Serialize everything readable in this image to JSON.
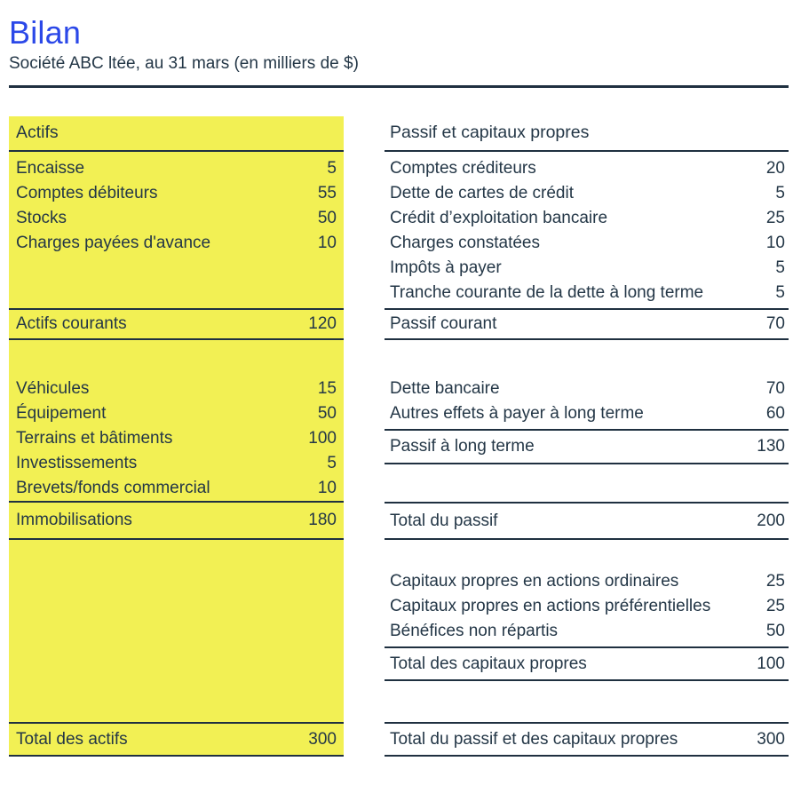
{
  "header": {
    "title": "Bilan",
    "subtitle": "Société ABC ltée, au 31 mars (en milliers de $)"
  },
  "colors": {
    "accent": "#2b48e8",
    "yellow": "#f2f054",
    "ink": "#243747",
    "line": "#1f3040"
  },
  "assets": {
    "header": "Actifs",
    "current": {
      "rows": [
        {
          "label": "Encaisse",
          "value": "5"
        },
        {
          "label": "Comptes débiteurs",
          "value": "55"
        },
        {
          "label": "Stocks",
          "value": "50"
        },
        {
          "label": "Charges payées d'avance",
          "value": "10"
        }
      ],
      "subtotal": {
        "label": "Actifs courants",
        "value": "120"
      }
    },
    "fixed": {
      "rows": [
        {
          "label": "Véhicules",
          "value": "15"
        },
        {
          "label": "Équipement",
          "value": "50"
        },
        {
          "label": "Terrains et bâtiments",
          "value": "100"
        },
        {
          "label": "Investissements",
          "value": "5"
        },
        {
          "label": "Brevets/fonds commercial",
          "value": "10"
        }
      ],
      "subtotal": {
        "label": "Immobilisations",
        "value": "180"
      }
    },
    "total": {
      "label": "Total des actifs",
      "value": "300"
    }
  },
  "liabilities": {
    "header": "Passif et capitaux propres",
    "current": {
      "rows": [
        {
          "label": "Comptes créditeurs",
          "value": "20"
        },
        {
          "label": "Dette de cartes de crédit",
          "value": "5"
        },
        {
          "label": "Crédit d’exploitation bancaire",
          "value": "25"
        },
        {
          "label": "Charges constatées",
          "value": "10"
        },
        {
          "label": "Impôts à payer",
          "value": "5"
        },
        {
          "label": "Tranche courante de la dette à long terme",
          "value": "5"
        }
      ],
      "subtotal": {
        "label": "Passif courant",
        "value": "70"
      }
    },
    "long_term": {
      "rows": [
        {
          "label": "Dette bancaire",
          "value": "70"
        },
        {
          "label": "Autres effets à payer à long terme",
          "value": "60"
        }
      ],
      "subtotal": {
        "label": "Passif à long terme",
        "value": "130"
      }
    },
    "total_liabilities": {
      "label": "Total du passif",
      "value": "200"
    },
    "equity": {
      "rows": [
        {
          "label": "Capitaux propres en actions ordinaires",
          "value": "25"
        },
        {
          "label": "Capitaux propres en actions préférentielles",
          "value": "25"
        },
        {
          "label": "Bénéfices non répartis",
          "value": "50"
        }
      ],
      "subtotal": {
        "label": "Total des capitaux propres",
        "value": "100"
      }
    },
    "grand_total": {
      "label": "Total du passif et des capitaux propres",
      "value": "300"
    }
  }
}
